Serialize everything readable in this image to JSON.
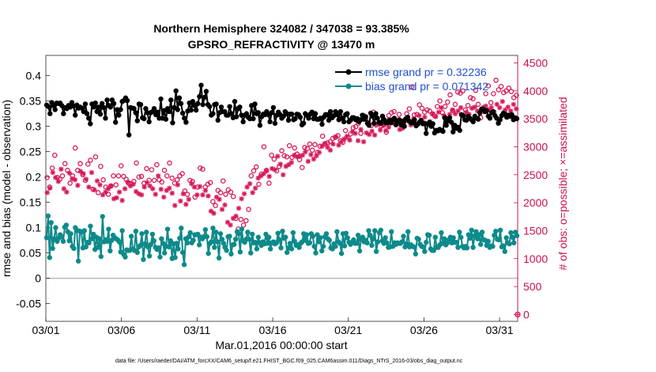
{
  "chart_data": {
    "type": "line",
    "title": "Northern Hemisphere 324082 / 347038 = 93.385%",
    "subtitle": "GPSRO_REFRACTIVITY @ 13470 m",
    "xlabel": "Mar.01,2016 00:00:00 start",
    "ylabel": "rmse and bias (model - observation)",
    "ylabel_right": "# of obs: o=possible; ×=assimilated",
    "footnote": "data file: /Users/raeder/DAI/ATM_forcXX/CAM6_setup/f.e21.FHIST_BGC.f09_025.CAM6assim.011/Diags_NTrS_2016-03/obs_diag_output.nc",
    "xlim": [
      0,
      31.2
    ],
    "xticks": [
      0,
      5,
      10,
      15,
      20,
      25,
      30
    ],
    "xtick_labels": [
      "03/01",
      "03/06",
      "03/11",
      "03/16",
      "03/21",
      "03/26",
      "03/31"
    ],
    "ylim": [
      -0.085,
      0.44
    ],
    "yticks": [
      -0.05,
      0,
      0.05,
      0.1,
      0.15,
      0.2,
      0.25,
      0.3,
      0.35,
      0.4
    ],
    "ytick_labels": [
      "-0.05",
      "0",
      "0.05",
      "0.1",
      "0.15",
      "0.2",
      "0.25",
      "0.3",
      "0.35",
      "0.4"
    ],
    "ylim_right": [
      -122,
      4635
    ],
    "yticks_right": [
      0,
      500,
      1000,
      1500,
      2000,
      2500,
      3000,
      3500,
      4000,
      4500
    ],
    "ytick_labels_right": [
      "0",
      "500",
      "1000",
      "1500",
      "2000",
      "2500",
      "3000",
      "3500",
      "4000",
      "4500"
    ],
    "legend_position": "top-right",
    "zero_line": 0,
    "colors": {
      "rmse": "#000000",
      "bias": "#0e8a8a",
      "obs": "#d6185a",
      "zero": "#b9b9b9"
    },
    "series": [
      {
        "name": "rmse grand pr = 0.32236",
        "axis": "left",
        "marker": "filled-circle",
        "values": [
          0.342,
          0.339,
          0.325,
          0.347,
          0.341,
          0.333,
          0.346,
          0.345,
          0.346,
          0.341,
          0.325,
          0.337,
          0.335,
          0.341,
          0.338,
          0.347,
          0.34,
          0.322,
          0.342,
          0.336,
          0.338,
          0.336,
          0.329,
          0.344,
          0.325,
          0.316,
          0.305,
          0.344,
          0.338,
          0.346,
          0.329,
          0.338,
          0.324,
          0.345,
          0.337,
          0.316,
          0.352,
          0.341,
          0.338,
          0.352,
          0.345,
          0.308,
          0.333,
          0.322,
          0.333,
          0.349,
          0.351,
          0.356,
          0.351,
          0.283,
          0.337,
          0.336,
          0.335,
          0.327,
          0.311,
          0.344,
          0.343,
          0.317,
          0.315,
          0.335,
          0.327,
          0.309,
          0.327,
          0.329,
          0.335,
          0.323,
          0.328,
          0.316,
          0.354,
          0.316,
          0.331,
          0.314,
          0.335,
          0.329,
          0.352,
          0.307,
          0.337,
          0.37,
          0.333,
          0.356,
          0.345,
          0.326,
          0.316,
          0.308,
          0.33,
          0.346,
          0.332,
          0.349,
          0.341,
          0.332,
          0.345,
          0.359,
          0.381,
          0.343,
          0.357,
          0.369,
          0.343,
          0.339,
          0.322,
          0.325,
          0.343,
          0.344,
          0.312,
          0.327,
          0.338,
          0.329,
          0.329,
          0.322,
          0.322,
          0.339,
          0.325,
          0.317,
          0.349,
          0.319,
          0.335,
          0.338,
          0.322,
          0.309,
          0.322,
          0.325,
          0.318,
          0.315,
          0.341,
          0.315,
          0.344,
          0.325,
          0.327,
          0.302,
          0.319,
          0.324,
          0.323,
          0.329,
          0.323,
          0.309,
          0.327,
          0.337,
          0.306,
          0.322,
          0.328,
          0.323,
          0.316,
          0.32,
          0.329,
          0.325,
          0.312,
          0.324,
          0.324,
          0.313,
          0.315,
          0.324,
          0.323,
          0.318,
          0.303,
          0.306,
          0.325,
          0.322,
          0.316,
          0.324,
          0.328,
          0.315,
          0.325,
          0.314,
          0.314,
          0.316,
          0.304,
          0.318,
          0.323,
          0.323,
          0.312,
          0.329,
          0.317,
          0.321,
          0.329,
          0.323,
          0.313,
          0.329,
          0.316,
          0.309,
          0.323,
          0.325,
          0.309,
          0.312,
          0.317,
          0.317,
          0.313,
          0.315,
          0.309,
          0.313,
          0.322,
          0.314,
          0.319,
          0.306,
          0.302,
          0.326,
          0.32,
          0.306,
          0.325,
          0.316,
          0.308,
          0.306,
          0.32,
          0.313,
          0.307,
          0.307,
          0.312,
          0.307,
          0.313,
          0.316,
          0.303,
          0.31,
          0.313,
          0.303,
          0.31,
          0.3,
          0.315,
          0.318,
          0.31,
          0.307,
          0.307,
          0.313,
          0.301,
          0.304,
          0.308,
          0.312,
          0.305,
          0.306,
          0.286,
          0.305,
          0.308,
          0.3,
          0.305,
          0.287,
          0.292,
          0.291,
          0.294,
          0.292,
          0.29,
          0.317,
          0.302,
          0.311,
          0.317,
          0.308,
          0.289,
          0.302,
          0.296,
          0.298,
          0.292,
          0.323,
          0.321,
          0.313,
          0.312,
          0.32,
          0.316,
          0.313,
          0.309,
          0.32,
          0.316,
          0.314,
          0.327,
          0.334,
          0.334,
          0.329,
          0.331,
          0.32,
          0.316,
          0.327,
          0.329,
          0.321,
          0.316,
          0.306,
          0.313,
          0.321,
          0.326,
          0.324,
          0.318,
          0.322,
          0.32,
          0.323,
          0.313,
          0.317,
          0.315
        ]
      },
      {
        "name": "bias grand pr = 0.071342",
        "axis": "left",
        "marker": "filled-circle",
        "values": [
          0.08,
          0.123,
          0.041,
          0.11,
          0.059,
          0.078,
          0.1,
          0.073,
          0.079,
          0.086,
          0.082,
          0.073,
          0.101,
          0.105,
          0.092,
          0.074,
          0.088,
          0.063,
          0.059,
          0.1,
          0.095,
          0.034,
          0.093,
          0.091,
          0.06,
          0.094,
          0.062,
          0.071,
          0.07,
          0.103,
          0.078,
          0.087,
          0.057,
          0.081,
          0.061,
          0.078,
          0.043,
          0.122,
          0.072,
          0.076,
          0.073,
          0.097,
          0.054,
          0.075,
          0.085,
          0.08,
          0.078,
          0.076,
          0.072,
          0.052,
          0.094,
          0.047,
          0.042,
          0.056,
          0.055,
          0.055,
          0.083,
          0.058,
          0.055,
          0.093,
          0.051,
          0.062,
          0.065,
          0.088,
          0.037,
          0.068,
          0.091,
          0.062,
          0.044,
          0.067,
          0.087,
          0.074,
          0.061,
          0.057,
          0.06,
          0.042,
          0.078,
          0.069,
          0.05,
          0.063,
          0.097,
          0.062,
          0.074,
          0.039,
          0.068,
          0.041,
          0.069,
          0.058,
          0.079,
          0.099,
          0.051,
          0.027,
          0.078,
          0.07,
          0.082,
          0.09,
          0.07,
          0.075,
          0.086,
          0.086,
          0.087,
          0.066,
          0.081,
          0.078,
          0.082,
          0.096,
          0.082,
          0.049,
          0.069,
          0.072,
          0.099,
          0.061,
          0.091,
          0.072,
          0.04,
          0.088,
          0.077,
          0.069,
          0.061,
          0.055,
          0.082,
          0.083,
          0.048,
          0.066,
          0.067,
          0.077,
          0.092,
          0.088,
          0.052,
          0.097,
          0.074,
          0.071,
          0.077,
          0.091,
          0.077,
          0.05,
          0.087,
          0.07,
          0.071,
          0.058,
          0.081,
          0.07,
          0.065,
          0.072,
          0.068,
          0.087,
          0.069,
          0.081,
          0.058,
          0.07,
          0.072,
          0.068,
          0.07,
          0.089,
          0.076,
          0.06,
          0.093,
          0.079,
          0.081,
          0.051,
          0.06,
          0.069,
          0.058,
          0.09,
          0.073,
          0.065,
          0.066,
          0.061,
          0.069,
          0.072,
          0.088,
          0.075,
          0.086,
          0.069,
          0.07,
          0.088,
          0.083,
          0.063,
          0.05,
          0.086,
          0.072,
          0.08,
          0.054,
          0.063,
          0.082,
          0.088,
          0.078,
          0.075,
          0.06,
          0.058,
          0.068,
          0.063,
          0.092,
          0.072,
          0.069,
          0.049,
          0.088,
          0.064,
          0.089,
          0.08,
          0.071,
          0.067,
          0.071,
          0.076,
          0.069,
          0.069,
          0.085,
          0.054,
          0.077,
          0.081,
          0.072,
          0.075,
          0.07,
          0.094,
          0.085,
          0.065,
          0.078,
          0.094,
          0.053,
          0.072,
          0.09,
          0.095,
          0.074,
          0.069,
          0.08,
          0.07,
          0.061,
          0.062,
          0.092,
          0.063,
          0.07,
          0.067,
          0.07,
          0.069,
          0.069,
          0.072,
          0.083,
          0.062,
          0.068,
          0.092,
          0.062,
          0.066,
          0.063,
          0.062,
          0.048,
          0.079,
          0.077,
          0.067,
          0.063,
          0.062,
          0.053,
          0.071,
          0.086,
          0.085,
          0.058,
          0.055,
          0.055,
          0.081,
          0.061,
          0.061,
          0.066,
          0.09,
          0.069,
          0.078,
          0.066,
          0.07,
          0.076,
          0.081,
          0.07,
          0.08,
          0.071,
          0.071,
          0.061,
          0.091,
          0.081,
          0.063,
          0.06,
          0.063,
          0.06,
          0.086,
          0.079,
          0.095,
          0.061,
          0.084,
          0.092,
          0.078,
          0.086,
          0.067,
          0.091,
          0.076,
          0.075,
          0.065,
          0.073,
          0.061,
          0.064,
          0.063,
          0.085,
          0.093,
          0.077,
          0.076,
          0.095,
          0.062,
          0.064,
          0.053,
          0.08,
          0.07,
          0.068,
          0.09,
          0.081,
          0.07,
          0.091,
          0.084
        ]
      },
      {
        "name": "obs possible",
        "axis": "right",
        "marker": "open-circle",
        "values": [
          2450,
          2280,
          2620,
          2850,
          2450,
          2420,
          2480,
          2700,
          2580,
          2350,
          2480,
          2980,
          2580,
          2700,
          2500,
          2400,
          2690,
          2760,
          2240,
          2820,
          2180,
          2650,
          2410,
          2280,
          2150,
          2300,
          2480,
          2320,
          2480,
          2660,
          2470,
          2420,
          2350,
          2340,
          2380,
          2710,
          2460,
          2470,
          2350,
          2610,
          2400,
          2590,
          2400,
          2680,
          2410,
          2370,
          2580,
          2480,
          2710,
          2440,
          2350,
          2410,
          2480,
          2520,
          2210,
          2150,
          2400,
          2380,
          2100,
          2280,
          2620,
          2600,
          2280,
          2330,
          2360,
          2020,
          1950,
          2220,
          2180,
          2390,
          2150,
          2230,
          2190,
          2110,
          1720,
          1530,
          1700,
          1600,
          1680,
          1880,
          2480,
          2570,
          2640,
          2330,
          2510,
          3000,
          2580,
          2350,
          2850,
          2780,
          2570,
          2650,
          2930,
          2840,
          2820,
          3020,
          2810,
          2980,
          2870,
          2770,
          2630,
          2990,
          2970,
          3050,
          2940,
          3040,
          2900,
          3010,
          3190,
          3050,
          3070,
          3090,
          3150,
          3170,
          3200,
          3110,
          3080,
          3290,
          3170,
          3230,
          3340,
          3360,
          3420,
          3240,
          3560,
          3490,
          3430,
          3380,
          3620,
          3390,
          3420,
          3370,
          3390,
          3260,
          3560,
          3610,
          3630,
          3480,
          3580,
          3420,
          3470,
          3590,
          3680,
          4070,
          3570,
          3580,
          3750,
          3690,
          3620,
          3660,
          3640,
          3590,
          3550,
          3720,
          3820,
          3610,
          3720,
          3800,
          3930,
          3650,
          3760,
          3980,
          3960,
          4000,
          3660,
          3740,
          3880,
          3860,
          4010,
          3760,
          3520,
          3700,
          3950,
          4090,
          3790,
          3950,
          4190,
          4020,
          4080,
          3970,
          4000,
          4050,
          3990,
          3880,
          3920
        ]
      },
      {
        "name": "obs assimilated",
        "axis": "right",
        "marker": "star",
        "values": [
          2180,
          2260,
          2540,
          2450,
          2380,
          2600,
          2250,
          2190,
          2530,
          2430,
          2410,
          2310,
          2560,
          2520,
          2420,
          2280,
          2540,
          2230,
          2390,
          2320,
          2140,
          2190,
          2250,
          2300,
          2070,
          2090,
          2190,
          2040,
          2250,
          2370,
          2300,
          2330,
          2200,
          2160,
          2140,
          2280,
          2360,
          2300,
          2250,
          2150,
          2480,
          2240,
          2100,
          2220,
          2260,
          2170,
          1950,
          2320,
          2030,
          2160,
          1970,
          2060,
          2340,
          2280,
          2140,
          2290,
          2140,
          2220,
          2120,
          1850,
          1810,
          2100,
          2060,
          1880,
          1960,
          1650,
          1600,
          1720,
          1760,
          1900,
          2070,
          2160,
          2280,
          2340,
          2180,
          2260,
          2440,
          2480,
          2520,
          2570,
          2470,
          2610,
          2590,
          2830,
          2690,
          2500,
          2650,
          2680,
          2720,
          2850,
          2820,
          2830,
          2850,
          2910,
          2740,
          2860,
          2780,
          2840,
          2900,
          3010,
          3060,
          2990,
          2940,
          3050,
          3180,
          3030,
          3090,
          3140,
          3190,
          3120,
          3270,
          3240,
          3110,
          3310,
          3090,
          3250,
          3220,
          3280,
          3210,
          3400,
          3300,
          3380,
          3290,
          3350,
          3470,
          3420,
          3450,
          3310,
          3330,
          3480,
          3460,
          3390,
          3500,
          3410,
          3560,
          3430,
          3530,
          3400,
          3450,
          3590,
          3540,
          3620,
          3700,
          3560,
          3510,
          3580,
          3660,
          3590,
          3640,
          3700,
          3570,
          3620,
          3580,
          3690,
          3710,
          3640,
          3600,
          3680,
          3730,
          3660,
          3700,
          3620,
          3760,
          3700,
          3810,
          3660,
          3710,
          3640,
          3760,
          3680
        ]
      }
    ]
  }
}
